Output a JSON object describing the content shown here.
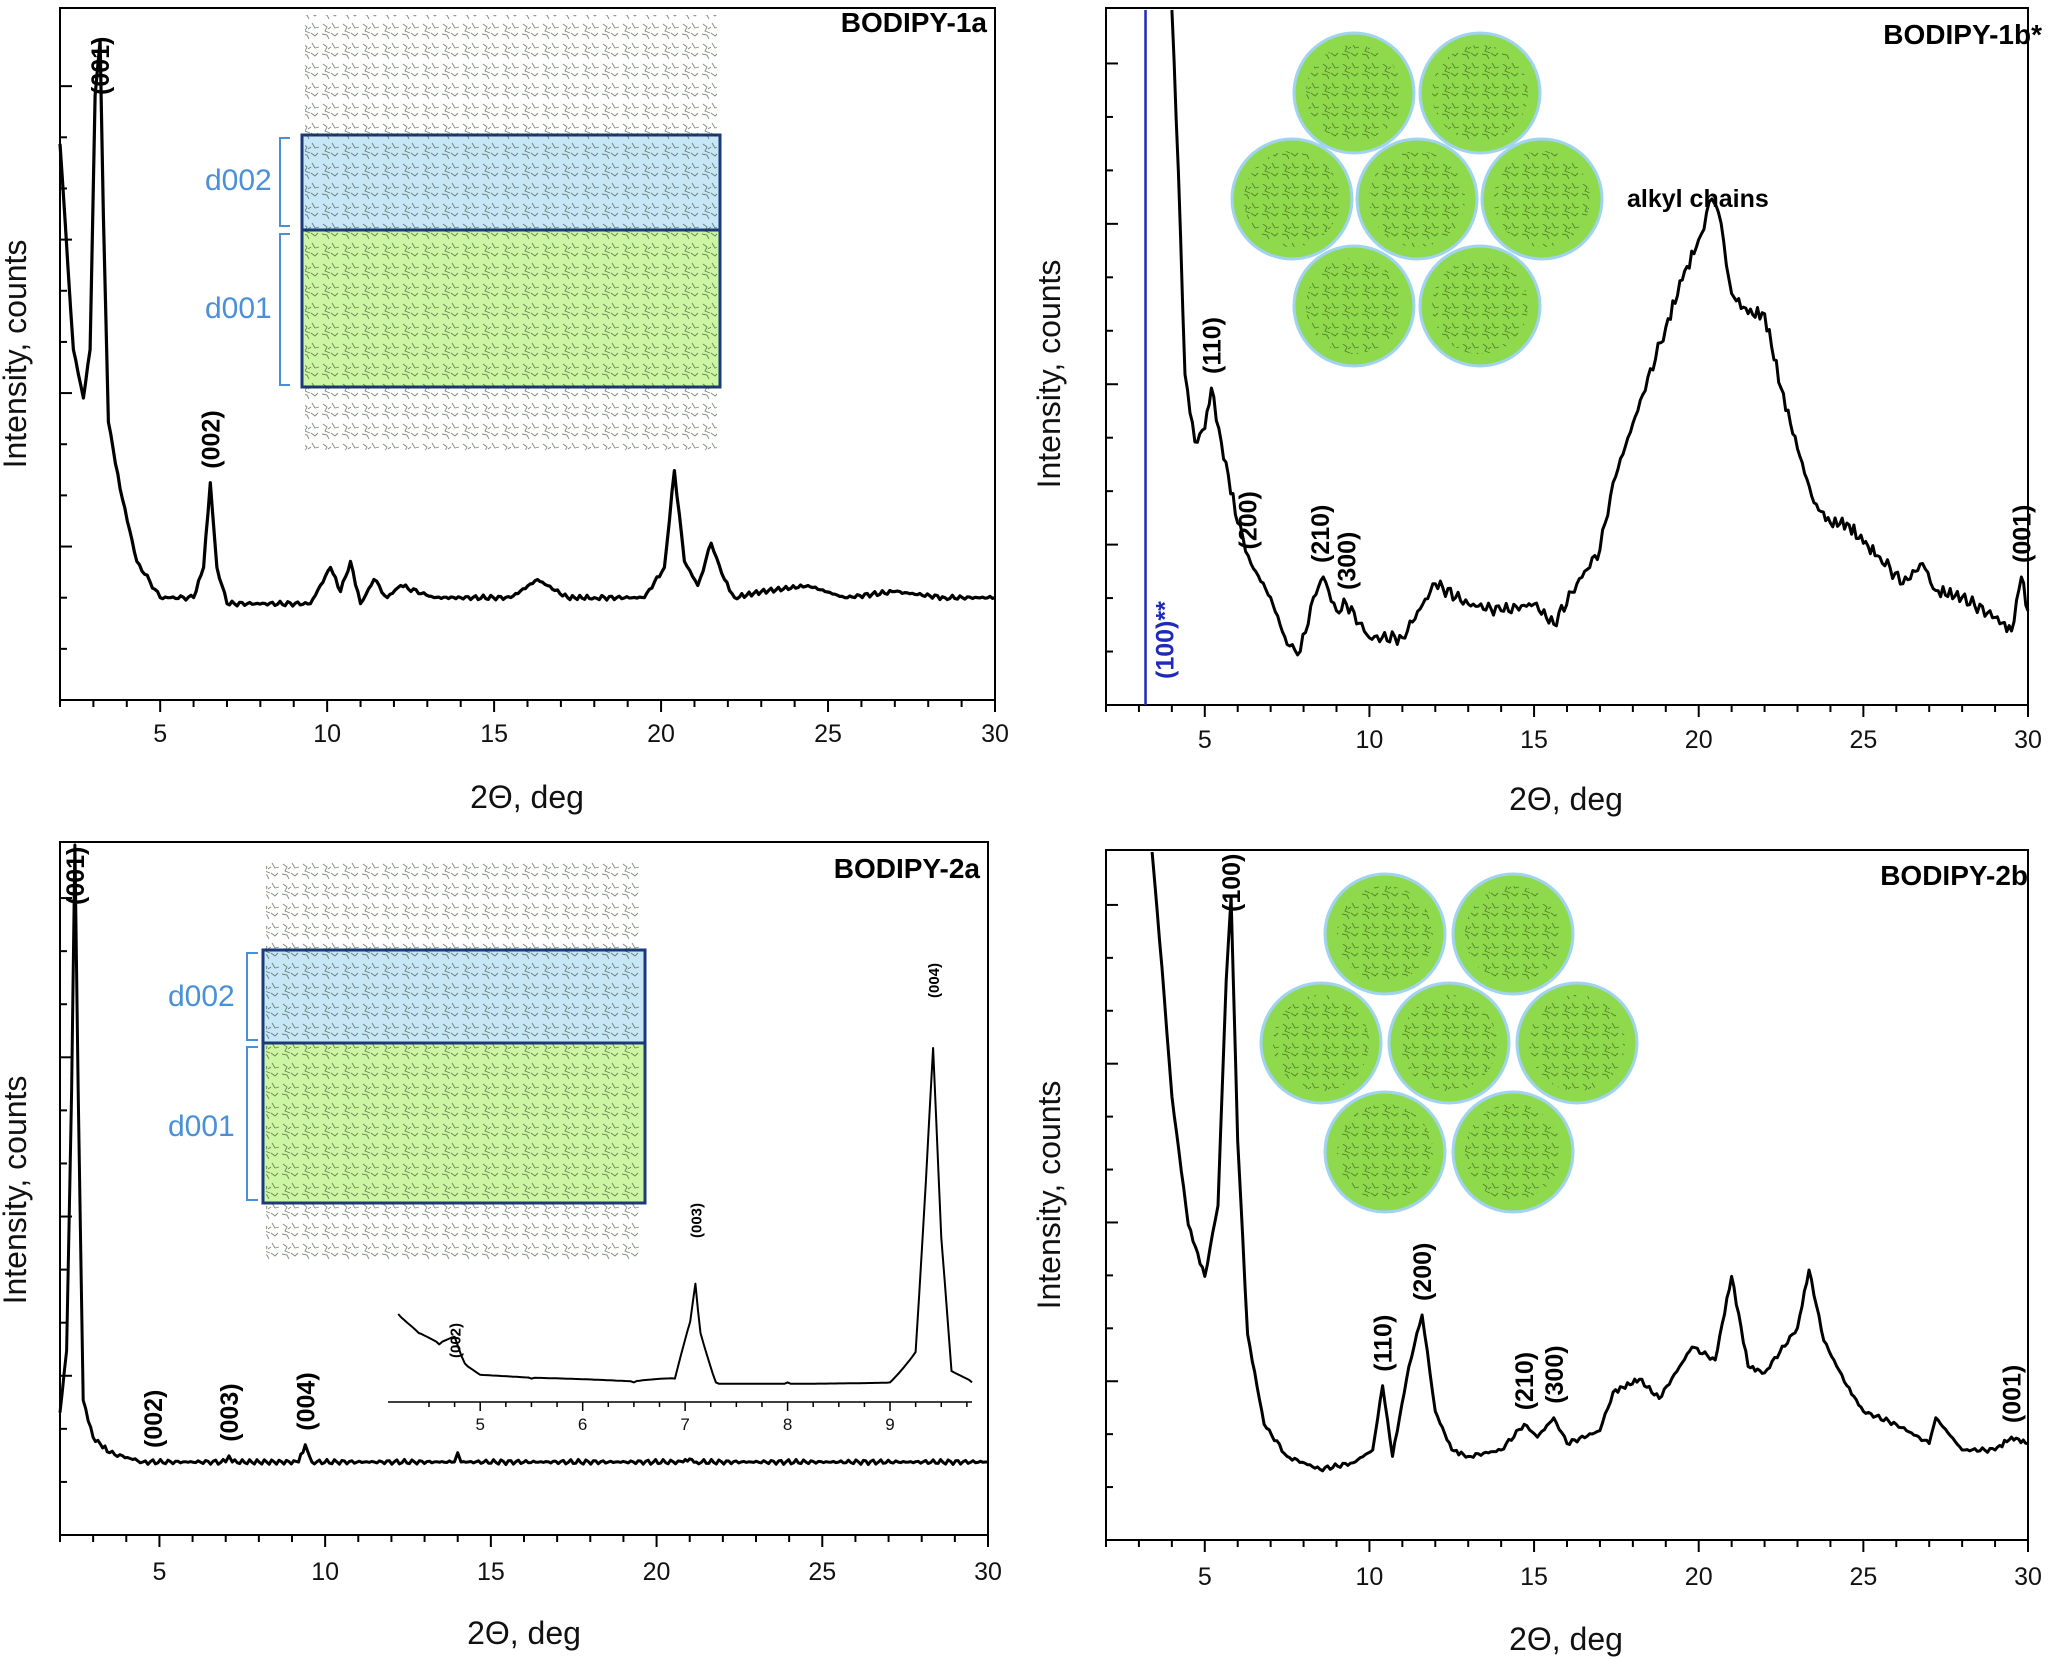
{
  "colors": {
    "trace": "#000000",
    "light_blue": "#c7e7f7",
    "light_green": "#ccf6a4",
    "circle_green": "#8fda4c",
    "circle_edge": "#9fd3ef",
    "frame_blue": "#1a3a7a",
    "marker_blue": "#1f2ab8",
    "d_label": "#4a90d9"
  },
  "chart_data": [
    {
      "type": "line",
      "title": "BODIPY-1a",
      "xlabel": "2Θ, deg",
      "ylabel": "Intensity, counts",
      "xlim": [
        2,
        30
      ],
      "xticks": [
        "5",
        "10",
        "15",
        "20",
        "25",
        "30"
      ],
      "grid": false,
      "peaks": [
        {
          "x": 3.2,
          "label": "(001)"
        },
        {
          "x": 6.5,
          "label": "(002)"
        }
      ],
      "x": [
        2.0,
        2.4,
        2.7,
        2.9,
        3.05,
        3.2,
        3.3,
        3.45,
        3.8,
        4.3,
        5.0,
        6.0,
        6.3,
        6.5,
        6.7,
        7.0,
        9.5,
        10.1,
        10.4,
        10.7,
        11.0,
        11.4,
        11.8,
        12.2,
        13.2,
        14.0,
        15.5,
        16.3,
        17.2,
        18.0,
        19.5,
        20.1,
        20.4,
        20.7,
        21.1,
        21.5,
        21.9,
        22.2,
        23.0,
        24.4,
        25.5,
        27.0,
        28.5,
        30.0
      ],
      "y": [
        0.82,
        0.48,
        0.4,
        0.48,
        0.9,
        0.99,
        0.7,
        0.36,
        0.25,
        0.13,
        0.07,
        0.07,
        0.12,
        0.26,
        0.12,
        0.06,
        0.06,
        0.12,
        0.08,
        0.13,
        0.06,
        0.1,
        0.07,
        0.09,
        0.07,
        0.07,
        0.07,
        0.1,
        0.07,
        0.07,
        0.07,
        0.12,
        0.28,
        0.13,
        0.09,
        0.16,
        0.1,
        0.07,
        0.08,
        0.09,
        0.07,
        0.08,
        0.07,
        0.07
      ]
    },
    {
      "type": "line",
      "title": "BODIPY-1b*",
      "xlabel": "2Θ, deg",
      "ylabel": "Intensity, counts",
      "xlim": [
        2,
        30
      ],
      "xticks": [
        "5",
        "10",
        "15",
        "20",
        "25",
        "30"
      ],
      "grid": false,
      "annotations": [
        "alkyl chains"
      ],
      "marker": {
        "x": 3.2,
        "label": "(100)**"
      },
      "peaks": [
        {
          "x": 5.2,
          "label": "(110)"
        },
        {
          "x": 6.3,
          "label": "(200)"
        },
        {
          "x": 8.5,
          "label": "(210)"
        },
        {
          "x": 9.3,
          "label": "(300)"
        },
        {
          "x": 29.8,
          "label": "(001)"
        }
      ],
      "x": [
        4.0,
        4.2,
        4.4,
        4.7,
        5.0,
        5.2,
        5.5,
        6.0,
        6.4,
        7.0,
        7.5,
        7.9,
        8.3,
        8.6,
        9.0,
        9.3,
        10.0,
        11.0,
        12.0,
        13.0,
        14.0,
        15.0,
        15.6,
        16.3,
        17.0,
        17.4,
        18.3,
        19.0,
        19.5,
        20.0,
        20.4,
        20.6,
        21.0,
        21.5,
        22.0,
        22.5,
        23.0,
        23.5,
        24.0,
        24.5,
        25.0,
        25.5,
        26.2,
        26.8,
        27.2,
        28.0,
        29.0,
        29.5,
        29.8,
        30.0
      ],
      "y": [
        1.0,
        0.76,
        0.46,
        0.36,
        0.38,
        0.44,
        0.36,
        0.24,
        0.18,
        0.13,
        0.06,
        0.05,
        0.13,
        0.16,
        0.11,
        0.12,
        0.07,
        0.07,
        0.15,
        0.12,
        0.11,
        0.12,
        0.09,
        0.15,
        0.2,
        0.3,
        0.43,
        0.53,
        0.6,
        0.66,
        0.72,
        0.7,
        0.58,
        0.55,
        0.55,
        0.44,
        0.35,
        0.27,
        0.24,
        0.24,
        0.21,
        0.19,
        0.15,
        0.18,
        0.14,
        0.13,
        0.1,
        0.08,
        0.16,
        0.11
      ]
    },
    {
      "type": "line",
      "title": "BODIPY-2a",
      "xlabel": "2Θ, deg",
      "ylabel": "Intensity, counts",
      "xlim": [
        2,
        30
      ],
      "xticks": [
        "5",
        "10",
        "15",
        "20",
        "25",
        "30"
      ],
      "grid": false,
      "peaks": [
        {
          "x": 2.45,
          "label": "(001)"
        },
        {
          "x": 4.8,
          "label": "(002)"
        },
        {
          "x": 7.1,
          "label": "(003)"
        },
        {
          "x": 9.4,
          "label": "(004)"
        }
      ],
      "x": [
        2.0,
        2.2,
        2.35,
        2.45,
        2.55,
        2.7,
        3.0,
        3.5,
        4.5,
        7.0,
        7.1,
        7.2,
        9.2,
        9.4,
        9.6,
        13.9,
        14.0,
        14.1,
        20.8,
        21.0,
        21.2,
        30.0
      ],
      "y": [
        0.08,
        0.18,
        0.6,
        1.0,
        0.6,
        0.1,
        0.04,
        0.015,
        0.0,
        0.0,
        0.01,
        0.0,
        0.0,
        0.028,
        0.0,
        0.0,
        0.015,
        0.0,
        0.0,
        0.005,
        0.0,
        0.0
      ],
      "inset": {
        "xlim": [
          4.1,
          9.8
        ],
        "xticks": [
          "5",
          "6",
          "7",
          "8",
          "9"
        ],
        "x": [
          4.2,
          4.4,
          4.6,
          4.75,
          4.85,
          5.0,
          5.5,
          6.5,
          6.9,
          7.05,
          7.1,
          7.15,
          7.3,
          8.0,
          9.0,
          9.25,
          9.35,
          9.42,
          9.5,
          9.6,
          9.8
        ],
        "y": [
          0.2,
          0.15,
          0.12,
          0.14,
          0.07,
          0.04,
          0.03,
          0.02,
          0.03,
          0.18,
          0.28,
          0.15,
          0.02,
          0.02,
          0.02,
          0.1,
          0.55,
          0.9,
          0.4,
          0.05,
          0.02
        ]
      }
    },
    {
      "type": "line",
      "title": "BODIPY-2b",
      "xlabel": "2Θ, deg",
      "ylabel": "Intensity, counts",
      "xlim": [
        2,
        30
      ],
      "xticks": [
        "5",
        "10",
        "15",
        "20",
        "25",
        "30"
      ],
      "grid": false,
      "peaks": [
        {
          "x": 5.8,
          "label": "(100)"
        },
        {
          "x": 10.4,
          "label": "(110)"
        },
        {
          "x": 11.6,
          "label": "(200)"
        },
        {
          "x": 14.7,
          "label": "(210)"
        },
        {
          "x": 15.6,
          "label": "(300)"
        },
        {
          "x": 29.5,
          "label": "(001)"
        }
      ],
      "x": [
        3.4,
        3.7,
        4.0,
        4.5,
        5.0,
        5.4,
        5.65,
        5.8,
        6.0,
        6.3,
        6.8,
        7.5,
        8.5,
        9.5,
        10.1,
        10.4,
        10.7,
        11.2,
        11.6,
        12.0,
        12.5,
        13.0,
        14.0,
        14.7,
        15.1,
        15.6,
        16.0,
        17.0,
        17.4,
        18.2,
        18.8,
        19.8,
        20.5,
        21.0,
        21.5,
        22.0,
        23.0,
        23.35,
        23.8,
        24.5,
        25.0,
        26.0,
        27.0,
        27.2,
        28.0,
        29.0,
        29.5,
        30.0
      ],
      "y": [
        1.0,
        0.82,
        0.62,
        0.42,
        0.34,
        0.45,
        0.8,
        0.93,
        0.55,
        0.25,
        0.11,
        0.06,
        0.04,
        0.05,
        0.07,
        0.17,
        0.06,
        0.2,
        0.28,
        0.13,
        0.07,
        0.06,
        0.07,
        0.11,
        0.09,
        0.12,
        0.08,
        0.1,
        0.16,
        0.18,
        0.15,
        0.23,
        0.21,
        0.34,
        0.2,
        0.19,
        0.26,
        0.35,
        0.24,
        0.17,
        0.13,
        0.11,
        0.08,
        0.12,
        0.07,
        0.07,
        0.09,
        0.08
      ]
    }
  ],
  "insets": {
    "lamellar": {
      "d_upper": "d002",
      "d_lower": "d001"
    }
  }
}
